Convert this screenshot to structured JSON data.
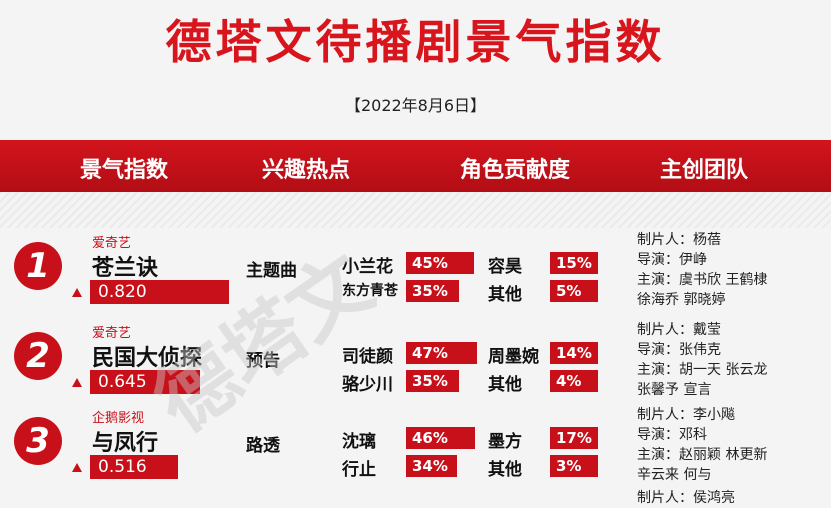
{
  "title": "德塔文待播剧景气指数",
  "date": "【2022年8月6日】",
  "headers": [
    "景气指数",
    "兴趣热点",
    "角色贡献度",
    "主创团队"
  ],
  "watermark": "德塔文",
  "rows": [
    {
      "rank": "1",
      "platform": "爱奇艺",
      "name": "苍兰诀",
      "score": "0.820",
      "score_value": 0.82,
      "hot": "主题曲",
      "roles_left": [
        {
          "name": "小兰花",
          "pct": "45%",
          "v": 45
        },
        {
          "name": "东方青苍",
          "pct": "35%",
          "v": 35
        }
      ],
      "roles_right": [
        {
          "name": "容昊",
          "pct": "15%",
          "v": 15
        },
        {
          "name": "其他",
          "pct": "5%",
          "v": 5
        }
      ],
      "team": [
        "制片人：杨蓓",
        "导演：伊峥",
        "主演：虞书欣 王鹤棣",
        "徐海乔 郭晓婷"
      ]
    },
    {
      "rank": "2",
      "platform": "爱奇艺",
      "name": "民国大侦探",
      "score": "0.645",
      "score_value": 0.645,
      "hot": "预告",
      "roles_left": [
        {
          "name": "司徒颜",
          "pct": "47%",
          "v": 47
        },
        {
          "name": "骆少川",
          "pct": "35%",
          "v": 35
        }
      ],
      "roles_right": [
        {
          "name": "周墨婉",
          "pct": "14%",
          "v": 14
        },
        {
          "name": "其他",
          "pct": "4%",
          "v": 4
        }
      ],
      "team": [
        "制片人：戴莹",
        "导演：张伟克",
        "主演：胡一天 张云龙",
        "张馨予 宣言"
      ]
    },
    {
      "rank": "3",
      "platform": "企鹅影视",
      "name": "与凤行",
      "score": "0.516",
      "score_value": 0.516,
      "hot": "路透",
      "roles_left": [
        {
          "name": "沈璃",
          "pct": "46%",
          "v": 46
        },
        {
          "name": "行止",
          "pct": "34%",
          "v": 34
        }
      ],
      "roles_right": [
        {
          "name": "墨方",
          "pct": "17%",
          "v": 17
        },
        {
          "name": "其他",
          "pct": "3%",
          "v": 3
        }
      ],
      "team": [
        "制片人：李小飚",
        "导演：邓科",
        "主演：赵丽颖 林更新",
        "辛云来 何与"
      ]
    }
  ],
  "partial_team": "制片人：侯鸿亮"
}
